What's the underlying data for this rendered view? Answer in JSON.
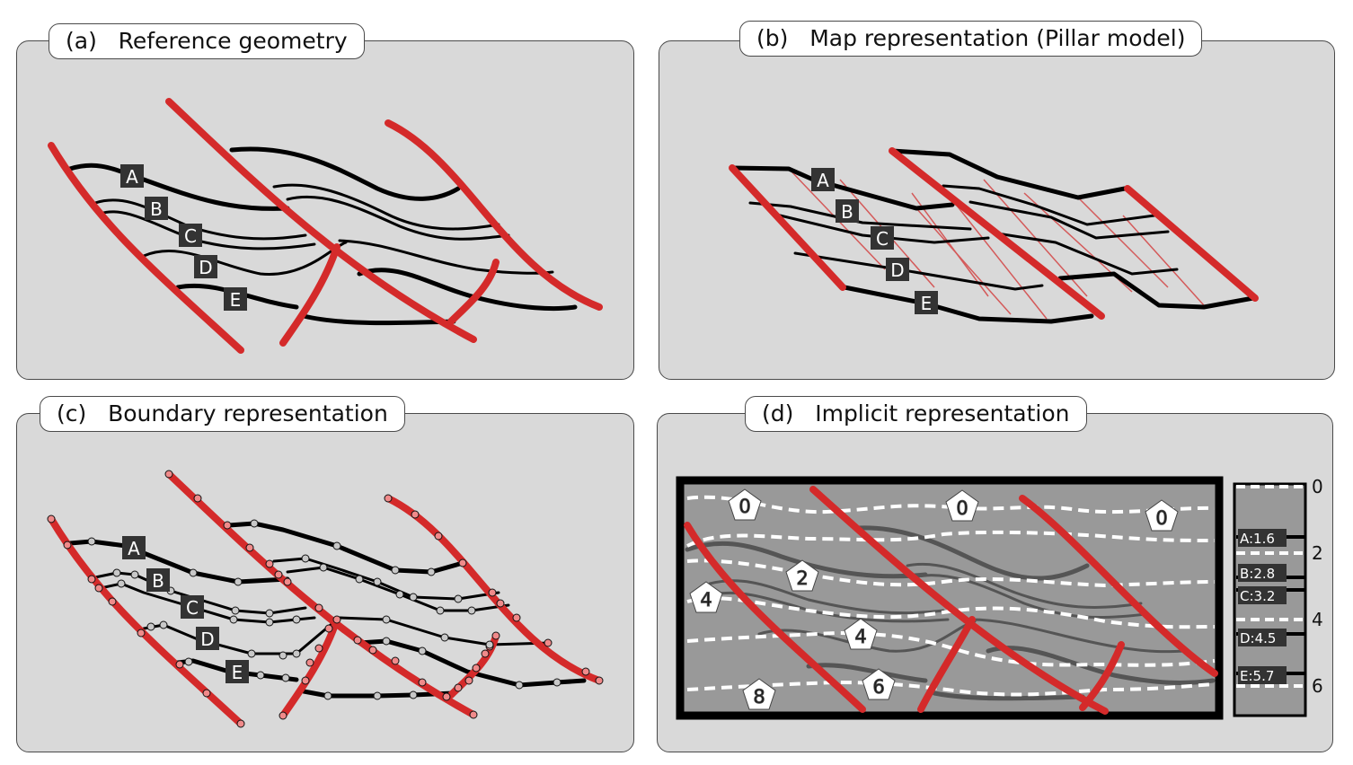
{
  "panels": {
    "a": {
      "title": "(a)   Reference geometry"
    },
    "b": {
      "title": "(b)   Map representation (Pillar model)"
    },
    "c": {
      "title": "(c)   Boundary representation"
    },
    "d": {
      "title": "(d)   Implicit representation"
    }
  },
  "horizon_labels": [
    "A",
    "B",
    "C",
    "D",
    "E"
  ],
  "implicit": {
    "pentagon_values": [
      "0",
      "0",
      "0",
      "2",
      "4",
      "4",
      "6",
      "8"
    ],
    "scale_ticks": [
      "0",
      "2",
      "4",
      "6"
    ],
    "scale_labels": [
      "A:1.6",
      "B:2.8",
      "C:3.2",
      "D:4.5",
      "E:5.7"
    ]
  },
  "colors": {
    "fault": "#d42a2a",
    "horizon": "#000000",
    "panel_bg": "#d9d9d9",
    "implicit_bg": "#999999",
    "node_fault": "#f08a8a",
    "node_horizon": "#c8c8c8"
  }
}
